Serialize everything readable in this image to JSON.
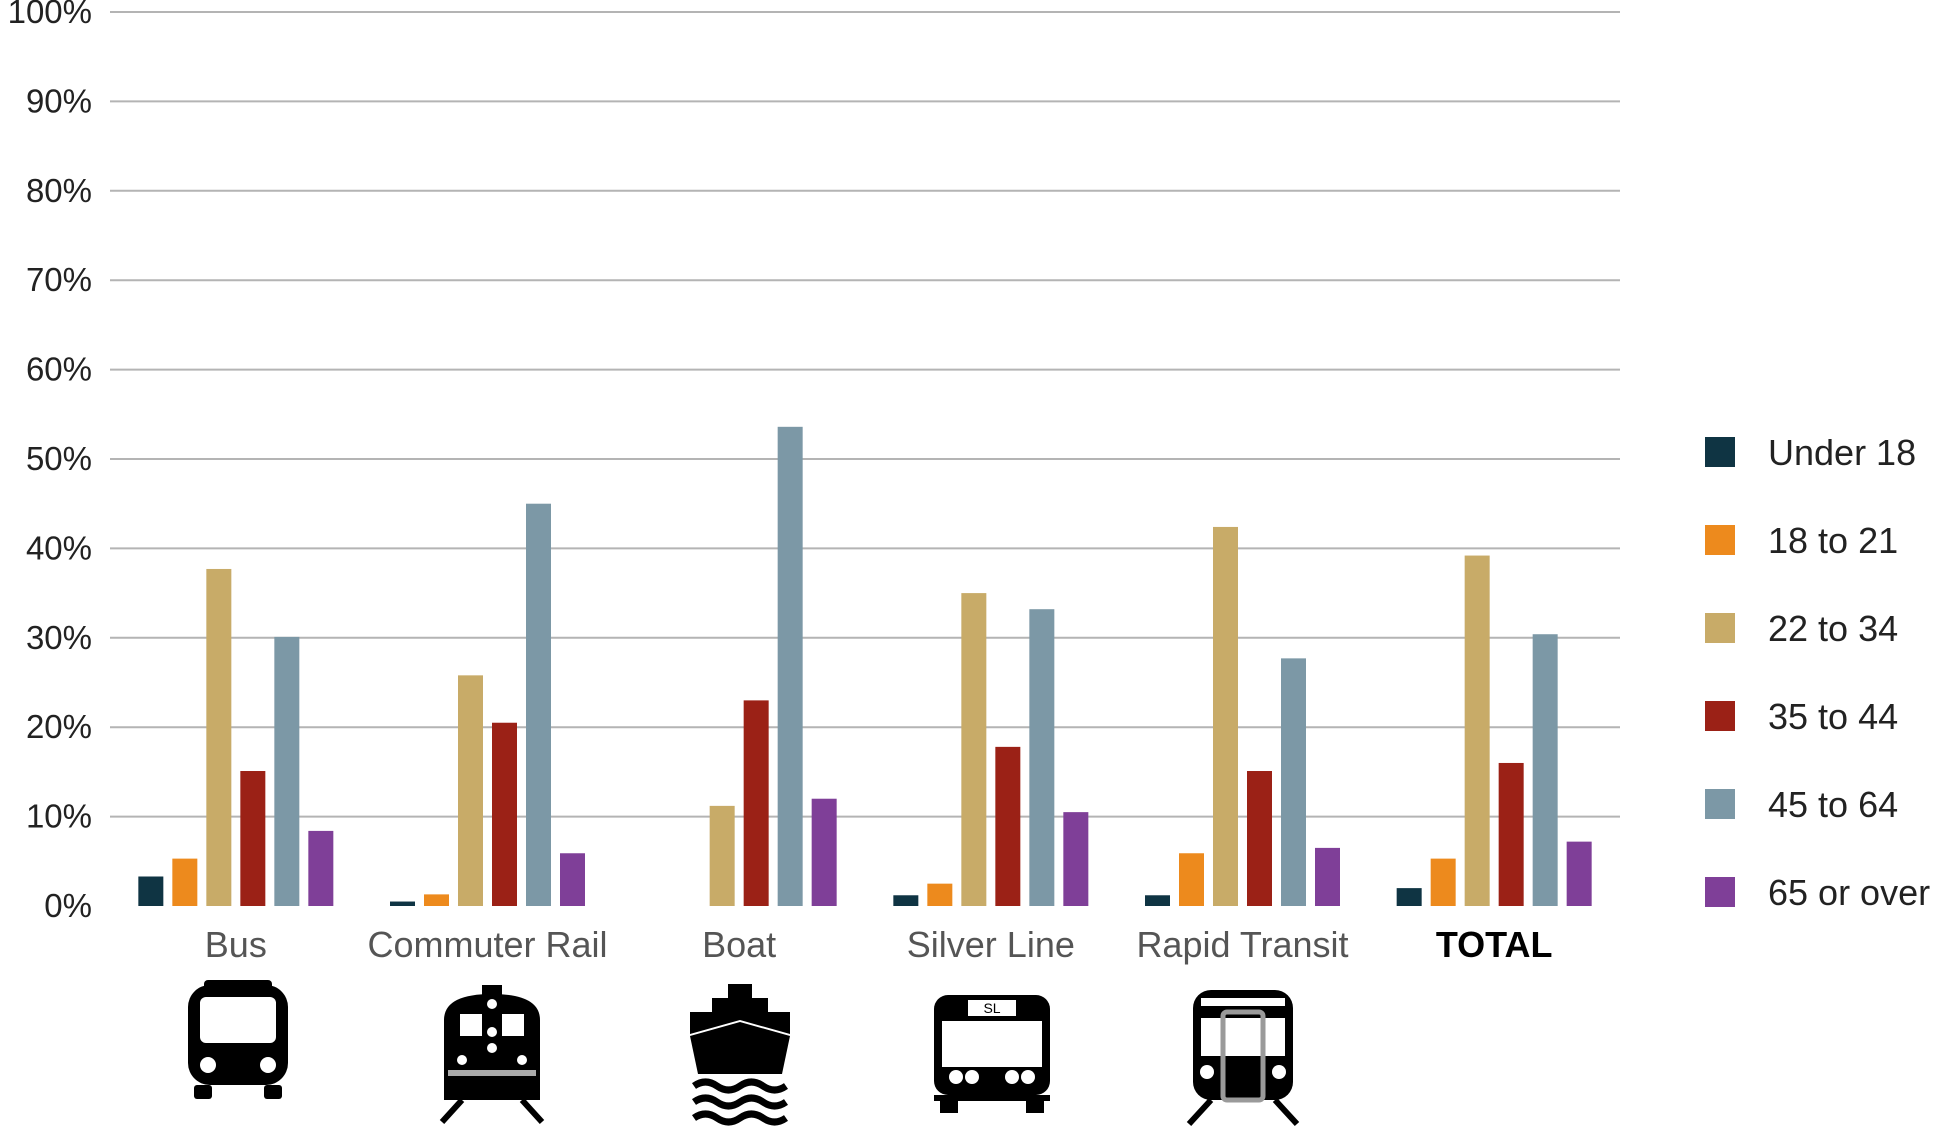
{
  "chart_data": {
    "type": "bar",
    "title": "",
    "xlabel": "",
    "ylabel": "",
    "ylim": [
      0,
      100
    ],
    "yticks": [
      "0%",
      "10%",
      "20%",
      "30%",
      "40%",
      "50%",
      "60%",
      "70%",
      "80%",
      "90%",
      "100%"
    ],
    "grid": true,
    "legend_position": "right",
    "categories": [
      "Bus",
      "Commuter Rail",
      "Boat",
      "Silver Line",
      "Rapid Transit",
      "TOTAL"
    ],
    "category_icons": [
      "bus-icon",
      "commuter-rail-train-icon",
      "boat-ferry-icon",
      "silver-line-bus-icon",
      "rapid-transit-train-icon",
      ""
    ],
    "silver_line_icon_text": "SL",
    "series": [
      {
        "name": "Under 18",
        "color": "#0f3443",
        "values": [
          3.3,
          0.5,
          0.0,
          1.2,
          1.2,
          2.0
        ]
      },
      {
        "name": "18 to 21",
        "color": "#ed8a1d",
        "values": [
          5.3,
          1.3,
          0.0,
          2.5,
          5.9,
          5.3
        ]
      },
      {
        "name": "22 to 34",
        "color": "#c8ab68",
        "values": [
          37.7,
          25.8,
          11.2,
          35.0,
          42.4,
          39.2
        ]
      },
      {
        "name": "35 to 44",
        "color": "#9b2116",
        "values": [
          15.1,
          20.5,
          23.0,
          17.8,
          15.1,
          16.0
        ]
      },
      {
        "name": "45 to 64",
        "color": "#7c98a6",
        "values": [
          30.1,
          45.0,
          53.6,
          33.2,
          27.7,
          30.4
        ]
      },
      {
        "name": "65 or over",
        "color": "#7f3f98",
        "values": [
          8.4,
          5.9,
          12.0,
          10.5,
          6.5,
          7.2
        ]
      }
    ]
  }
}
